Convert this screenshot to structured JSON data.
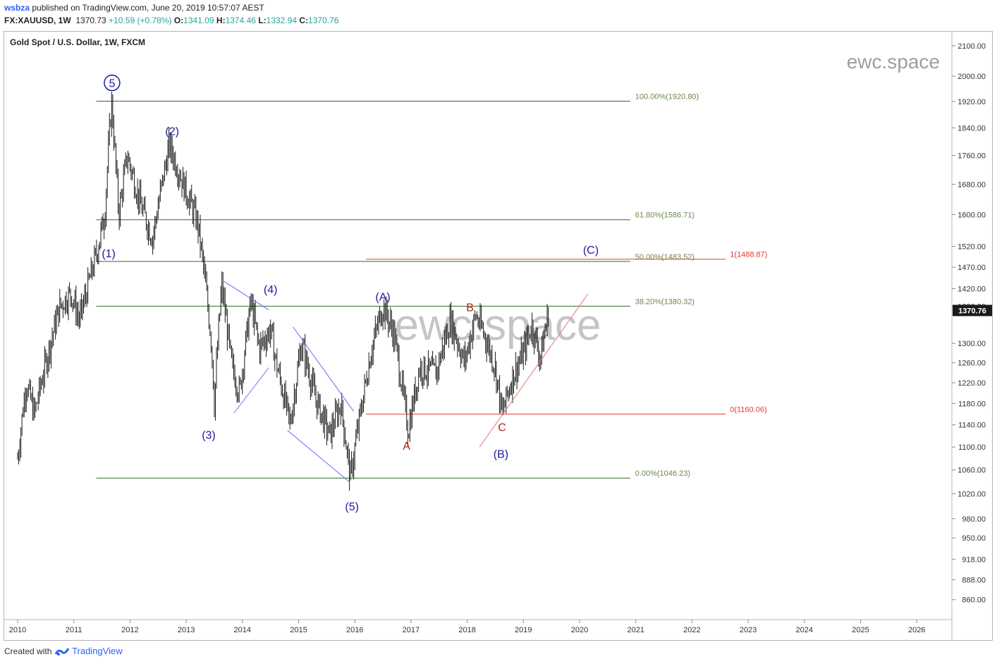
{
  "header": {
    "username": "wsbza",
    "published": "published on TradingView.com, June 20, 2019 10:57:07 AEST",
    "symbol": "FX:XAUUSD, 1W",
    "last": "1370.73",
    "change": "+10.59 (+0.78%)",
    "o_label": "O:",
    "o_value": "1341.09",
    "h_label": "H:",
    "h_value": "1374.46",
    "l_label": "L:",
    "l_value": "1332.94",
    "c_label": "C:",
    "c_value": "1370.76"
  },
  "footer": {
    "created_with": "Created with",
    "brand": "TradingView"
  },
  "colors": {
    "candle": "#1a1a1a",
    "fib_line": "#2e6b2e",
    "fib_text": "#6b8a4a",
    "fib2_line": "#e53935",
    "fib2_text": "#e53935",
    "wave_label": "#1a1aa0",
    "abc_label": "#b71c1c",
    "channel": "#6b6bff",
    "trendline": "#e57373",
    "price_tag": "#1a1a1a",
    "watermark": "#9e9e9e"
  },
  "chart_data": {
    "type": "candlestick",
    "title": "Gold Spot / U.S. Dollar, 1W, FXCM",
    "watermark_top": "ewc.space",
    "watermark_center": "ewc.space",
    "price_axis_scale": "log",
    "y_ticks": [
      "2100.00",
      "2000.00",
      "1920.00",
      "1840.00",
      "1760.00",
      "1680.00",
      "1600.00",
      "1520.00",
      "1470.00",
      "1420.00",
      "1380.00",
      "1300.00",
      "1260.00",
      "1220.00",
      "1180.00",
      "1140.00",
      "1100.00",
      "1060.00",
      "1020.00",
      "980.00",
      "950.00",
      "918.00",
      "888.00",
      "860.00"
    ],
    "x_ticks": [
      "2010",
      "2011",
      "2012",
      "2013",
      "2014",
      "2015",
      "2016",
      "2017",
      "2018",
      "2019",
      "2020",
      "2021",
      "2022",
      "2023",
      "2024",
      "2025",
      "2026"
    ],
    "last_price": "1370.76",
    "price_path": [
      [
        2010.0,
        1080
      ],
      [
        2010.15,
        1220
      ],
      [
        2010.3,
        1160
      ],
      [
        2010.5,
        1260
      ],
      [
        2010.75,
        1380
      ],
      [
        2010.95,
        1410
      ],
      [
        2011.1,
        1350
      ],
      [
        2011.4,
        1500
      ],
      [
        2011.55,
        1600
      ],
      [
        2011.67,
        1920.8
      ],
      [
        2011.8,
        1600
      ],
      [
        2011.95,
        1760
      ],
      [
        2012.2,
        1620
      ],
      [
        2012.4,
        1540
      ],
      [
        2012.7,
        1790
      ],
      [
        2012.95,
        1680
      ],
      [
        2013.2,
        1580
      ],
      [
        2013.3,
        1480
      ],
      [
        2013.45,
        1300
      ],
      [
        2013.5,
        1180
      ],
      [
        2013.63,
        1430
      ],
      [
        2013.8,
        1260
      ],
      [
        2013.95,
        1200
      ],
      [
        2014.15,
        1390
      ],
      [
        2014.3,
        1290
      ],
      [
        2014.5,
        1330
      ],
      [
        2014.6,
        1260
      ],
      [
        2014.85,
        1140
      ],
      [
        2015.05,
        1300
      ],
      [
        2015.3,
        1190
      ],
      [
        2015.55,
        1120
      ],
      [
        2015.75,
        1180
      ],
      [
        2015.92,
        1046.23
      ],
      [
        2016.05,
        1130
      ],
      [
        2016.3,
        1290
      ],
      [
        2016.5,
        1380
      ],
      [
        2016.7,
        1320
      ],
      [
        2016.95,
        1128
      ],
      [
        2017.15,
        1250
      ],
      [
        2017.45,
        1240
      ],
      [
        2017.7,
        1350
      ],
      [
        2017.95,
        1260
      ],
      [
        2018.15,
        1360
      ],
      [
        2018.3,
        1320
      ],
      [
        2018.5,
        1250
      ],
      [
        2018.62,
        1160.06
      ],
      [
        2018.8,
        1230
      ],
      [
        2019.0,
        1280
      ],
      [
        2019.15,
        1340
      ],
      [
        2019.3,
        1270
      ],
      [
        2019.45,
        1370.76
      ]
    ],
    "fib_levels": [
      {
        "label": "100.00%(1920.80)",
        "price": 1920.8
      },
      {
        "label": "61.80%(1586.71)",
        "price": 1586.71
      },
      {
        "label": "50.00%(1483.52)",
        "price": 1483.52
      },
      {
        "label": "38.20%(1380.32)",
        "price": 1380.32
      },
      {
        "label": "0.00%(1046.23)",
        "price": 1046.23
      }
    ],
    "fib_extension": [
      {
        "label": "1(1488.87)",
        "price": 1488.87
      },
      {
        "label": "0(1160.06)",
        "price": 1160.06
      }
    ],
    "wave_labels": [
      {
        "text": "5",
        "circled": true,
        "t": 2011.68,
        "price": 1920.8
      },
      {
        "text": "(1)",
        "t": 2011.62,
        "price": 1480
      },
      {
        "text": "(2)",
        "t": 2012.75,
        "price": 1790
      },
      {
        "text": "(3)",
        "t": 2013.4,
        "price": 1180
      },
      {
        "text": "(4)",
        "t": 2014.5,
        "price": 1390
      },
      {
        "text": "(5)",
        "t": 2015.95,
        "price": 1046.23
      },
      {
        "text": "(A)",
        "t": 2016.5,
        "price": 1380
      },
      {
        "text": "(B)",
        "t": 2018.6,
        "price": 1160
      },
      {
        "text": "(C)",
        "t": 2020.2,
        "price": 1490
      },
      {
        "text": "A",
        "t": 2016.92,
        "price": 1128
      },
      {
        "text": "B",
        "t": 2018.05,
        "price": 1360
      },
      {
        "text": "C",
        "t": 2018.62,
        "price": 1160
      }
    ]
  }
}
